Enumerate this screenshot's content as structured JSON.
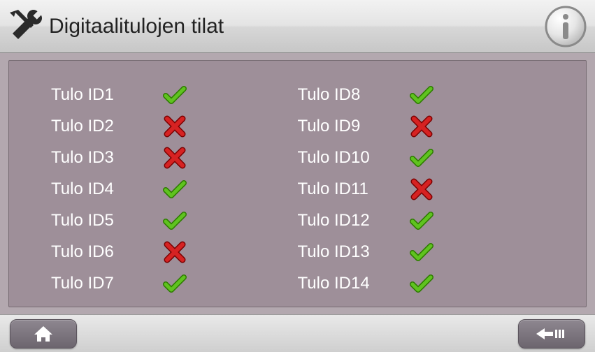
{
  "header": {
    "title": "Digitaalitulojen tilat"
  },
  "colors": {
    "page_bg": "#b3a8af",
    "panel_bg": "#9e8f99",
    "label_text": "#ffffff",
    "check_green": "#5fc31f",
    "cross_red": "#d62222",
    "btn_bg_top": "#8e8790",
    "btn_bg_bottom": "#6c656e"
  },
  "inputs_left": [
    {
      "label": "Tulo ID1",
      "state": "ok"
    },
    {
      "label": "Tulo ID2",
      "state": "fail"
    },
    {
      "label": "Tulo ID3",
      "state": "fail"
    },
    {
      "label": "Tulo ID4",
      "state": "ok"
    },
    {
      "label": "Tulo ID5",
      "state": "ok"
    },
    {
      "label": "Tulo ID6",
      "state": "fail"
    },
    {
      "label": "Tulo ID7",
      "state": "ok"
    }
  ],
  "inputs_right": [
    {
      "label": "Tulo ID8",
      "state": "ok"
    },
    {
      "label": "Tulo ID9",
      "state": "fail"
    },
    {
      "label": "Tulo ID10",
      "state": "ok"
    },
    {
      "label": "Tulo ID11",
      "state": "fail"
    },
    {
      "label": "Tulo ID12",
      "state": "ok"
    },
    {
      "label": "Tulo ID13",
      "state": "ok"
    },
    {
      "label": "Tulo ID14",
      "state": "ok"
    }
  ]
}
